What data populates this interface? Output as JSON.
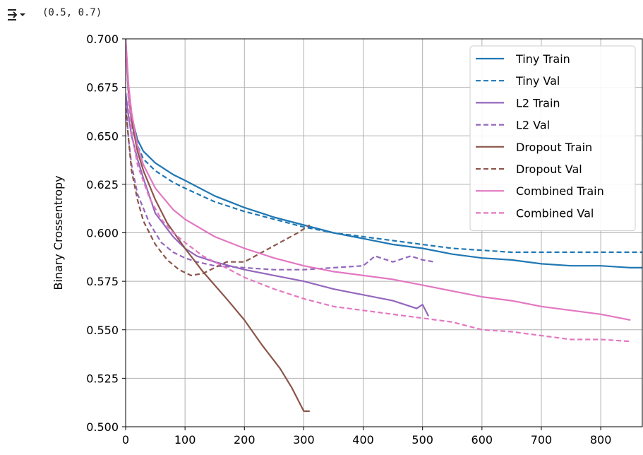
{
  "output": {
    "icon": "output-collapse-icon",
    "text": "(0.5, 0.7)"
  },
  "chart_data": {
    "type": "line",
    "title": "",
    "xlabel": "",
    "ylabel": "Binary Crossentropy",
    "xlim": [
      0,
      870
    ],
    "ylim": [
      0.5,
      0.7
    ],
    "grid": true,
    "legend_position": "top-right",
    "x_ticks": [
      0,
      100,
      200,
      300,
      400,
      500,
      600,
      700,
      800
    ],
    "x_tick_labels": [
      "0",
      "100",
      "200",
      "300",
      "400",
      "500",
      "600",
      "700",
      "800"
    ],
    "y_ticks": [
      0.5,
      0.525,
      0.55,
      0.575,
      0.6,
      0.625,
      0.65,
      0.675,
      0.7
    ],
    "y_tick_labels": [
      "0.500",
      "0.525",
      "0.550",
      "0.575",
      "0.600",
      "0.625",
      "0.650",
      "0.675",
      "0.700"
    ],
    "colors": {
      "tiny": "#1f77b4",
      "l2": "#9467bd",
      "dropout": "#8c564b",
      "combined": "#e377c2"
    },
    "series": [
      {
        "name": "Tiny Train",
        "color": "#1f77b4",
        "dash": false,
        "x": [
          0,
          5,
          10,
          20,
          30,
          50,
          80,
          100,
          150,
          200,
          250,
          300,
          350,
          400,
          450,
          500,
          550,
          600,
          650,
          700,
          750,
          800,
          850,
          870
        ],
        "y": [
          0.7,
          0.672,
          0.66,
          0.648,
          0.642,
          0.636,
          0.63,
          0.627,
          0.619,
          0.613,
          0.608,
          0.604,
          0.6,
          0.597,
          0.594,
          0.592,
          0.589,
          0.587,
          0.586,
          0.584,
          0.583,
          0.583,
          0.582,
          0.582
        ]
      },
      {
        "name": "Tiny Val",
        "color": "#1f77b4",
        "dash": true,
        "x": [
          0,
          5,
          10,
          20,
          30,
          50,
          80,
          100,
          150,
          200,
          250,
          300,
          350,
          400,
          450,
          500,
          550,
          600,
          650,
          700,
          750,
          800,
          850,
          870
        ],
        "y": [
          0.7,
          0.668,
          0.655,
          0.645,
          0.638,
          0.632,
          0.626,
          0.623,
          0.616,
          0.611,
          0.607,
          0.603,
          0.6,
          0.598,
          0.596,
          0.594,
          0.592,
          0.591,
          0.59,
          0.59,
          0.59,
          0.59,
          0.59,
          0.59
        ]
      },
      {
        "name": "L2 Train",
        "color": "#9467bd",
        "dash": false,
        "x": [
          0,
          5,
          10,
          20,
          30,
          50,
          80,
          100,
          120,
          150,
          200,
          250,
          300,
          350,
          400,
          450,
          490,
          500,
          510
        ],
        "y": [
          0.672,
          0.66,
          0.65,
          0.638,
          0.628,
          0.61,
          0.598,
          0.592,
          0.588,
          0.585,
          0.581,
          0.578,
          0.575,
          0.571,
          0.568,
          0.565,
          0.561,
          0.563,
          0.557
        ]
      },
      {
        "name": "L2 Val",
        "color": "#9467bd",
        "dash": true,
        "x": [
          0,
          5,
          10,
          20,
          40,
          60,
          80,
          100,
          120,
          150,
          200,
          250,
          300,
          350,
          400,
          420,
          450,
          480,
          500,
          520
        ],
        "y": [
          0.668,
          0.648,
          0.635,
          0.62,
          0.605,
          0.595,
          0.59,
          0.587,
          0.585,
          0.583,
          0.582,
          0.581,
          0.581,
          0.582,
          0.583,
          0.588,
          0.585,
          0.588,
          0.586,
          0.585
        ]
      },
      {
        "name": "Dropout Train",
        "color": "#8c564b",
        "dash": false,
        "x": [
          0,
          5,
          10,
          20,
          30,
          50,
          70,
          100,
          130,
          150,
          170,
          200,
          230,
          260,
          280,
          300,
          310
        ],
        "y": [
          0.7,
          0.672,
          0.658,
          0.642,
          0.632,
          0.617,
          0.605,
          0.592,
          0.58,
          0.573,
          0.566,
          0.555,
          0.542,
          0.53,
          0.52,
          0.508,
          0.508
        ]
      },
      {
        "name": "Dropout Val",
        "color": "#8c564b",
        "dash": true,
        "x": [
          0,
          5,
          10,
          20,
          30,
          50,
          70,
          90,
          110,
          130,
          150,
          170,
          200,
          230,
          260,
          290,
          310
        ],
        "y": [
          0.665,
          0.648,
          0.632,
          0.617,
          0.606,
          0.594,
          0.586,
          0.581,
          0.578,
          0.579,
          0.582,
          0.585,
          0.585,
          0.59,
          0.595,
          0.6,
          0.604
        ]
      },
      {
        "name": "Combined Train",
        "color": "#e377c2",
        "dash": false,
        "x": [
          0,
          5,
          10,
          20,
          30,
          50,
          80,
          100,
          150,
          200,
          250,
          300,
          350,
          400,
          450,
          500,
          550,
          600,
          650,
          700,
          750,
          800,
          850
        ],
        "y": [
          0.7,
          0.676,
          0.662,
          0.645,
          0.635,
          0.623,
          0.612,
          0.607,
          0.598,
          0.592,
          0.587,
          0.583,
          0.58,
          0.578,
          0.576,
          0.573,
          0.57,
          0.567,
          0.565,
          0.562,
          0.56,
          0.558,
          0.555
        ]
      },
      {
        "name": "Combined Val",
        "color": "#e377c2",
        "dash": true,
        "x": [
          0,
          5,
          10,
          20,
          40,
          60,
          80,
          100,
          130,
          150,
          200,
          250,
          300,
          350,
          400,
          450,
          500,
          550,
          600,
          650,
          700,
          750,
          800,
          850
        ],
        "y": [
          0.7,
          0.67,
          0.652,
          0.635,
          0.618,
          0.607,
          0.6,
          0.595,
          0.588,
          0.585,
          0.577,
          0.571,
          0.566,
          0.562,
          0.56,
          0.558,
          0.556,
          0.554,
          0.55,
          0.549,
          0.547,
          0.545,
          0.545,
          0.544
        ]
      }
    ]
  }
}
